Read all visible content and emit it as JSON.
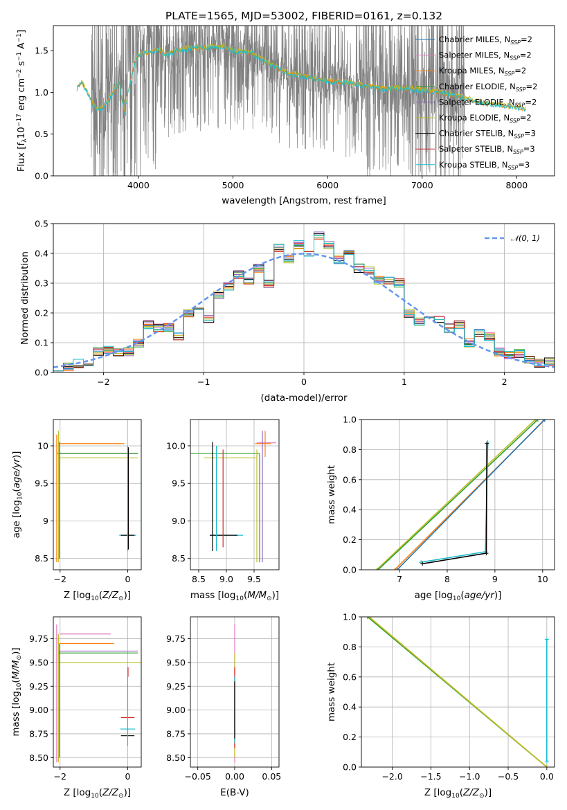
{
  "colors": {
    "chabrier_miles": "#1f77b4",
    "salpeter_miles": "#e377c2",
    "kroupa_miles": "#ff7f0e",
    "chabrier_elodie": "#2ca02c",
    "salpeter_elodie": "#9467bd",
    "kroupa_elodie": "#bcbd22",
    "chabrier_stelib": "#000000",
    "salpeter_stelib": "#d62728",
    "kroupa_stelib": "#17becf",
    "data": "#808080",
    "gauss": "#6495ed"
  },
  "chart_data": [
    {
      "id": "spectrum",
      "type": "line",
      "title": "PLATE=1565, MJD=53002, FIBERID=0161, z=0.132",
      "xlabel": "wavelength [Angstrom, rest frame]",
      "ylabel": "Flux [f_λ 10^-17 erg cm^-2 s^-1 A^-1]",
      "xlim": [
        3100,
        8400
      ],
      "ylim": [
        0,
        1.8
      ],
      "xticks": [
        4000,
        5000,
        6000,
        7000,
        8000
      ],
      "yticks": [
        0.0,
        0.5,
        1.0,
        1.5
      ],
      "data_range": [
        3500,
        7450
      ],
      "model_continuum": {
        "x": [
          3350,
          3400,
          3450,
          3500,
          3550,
          3600,
          3650,
          3700,
          3750,
          3800,
          3850,
          3900,
          3950,
          4000,
          4100,
          4200,
          4300,
          4400,
          4500,
          4700,
          4900,
          5000,
          5200,
          5400,
          5600,
          5800,
          6000,
          6200,
          6400,
          6600,
          6800,
          7000,
          7200,
          7400,
          7600,
          7800,
          8000,
          8100
        ],
        "y": [
          1.05,
          1.12,
          1.02,
          0.9,
          0.8,
          0.8,
          0.84,
          0.93,
          1.05,
          1.12,
          0.75,
          1.05,
          1.3,
          1.45,
          1.48,
          1.52,
          1.44,
          1.5,
          1.52,
          1.54,
          1.55,
          1.5,
          1.47,
          1.33,
          1.22,
          1.18,
          1.13,
          1.12,
          1.08,
          1.04,
          1.05,
          1.03,
          1.0,
          0.95,
          0.88,
          0.85,
          0.82,
          0.8
        ]
      },
      "legend": [
        {
          "label": "Chabrier MILES, N",
          "sub": "SSP",
          "n": "=2",
          "color_key": "chabrier_miles"
        },
        {
          "label": "Salpeter MILES, N",
          "sub": "SSP",
          "n": "=2",
          "color_key": "salpeter_miles"
        },
        {
          "label": "Kroupa MILES, N",
          "sub": "SSP",
          "n": "=2",
          "color_key": "kroupa_miles"
        },
        {
          "label": "Chabrier ELODIE, N",
          "sub": "SSP",
          "n": "=2",
          "color_key": "chabrier_elodie"
        },
        {
          "label": "Salpeter ELODIE, N",
          "sub": "SSP",
          "n": "=2",
          "color_key": "salpeter_elodie"
        },
        {
          "label": "Kroupa ELODIE, N",
          "sub": "SSP",
          "n": "=2",
          "color_key": "kroupa_elodie"
        },
        {
          "label": "Chabrier STELIB, N",
          "sub": "SSP",
          "n": "=3",
          "color_key": "chabrier_stelib"
        },
        {
          "label": "Salpeter STELIB, N",
          "sub": "SSP",
          "n": "=3",
          "color_key": "salpeter_stelib"
        },
        {
          "label": "Kroupa STELIB, N",
          "sub": "SSP",
          "n": "=3",
          "color_key": "kroupa_stelib"
        }
      ]
    },
    {
      "id": "residual_hist",
      "type": "bar",
      "xlabel": "(data-model)/error",
      "ylabel": "Normed distribution",
      "xlim": [
        -2.5,
        2.5
      ],
      "ylim": [
        0,
        0.5
      ],
      "xticks": [
        -2,
        -1,
        0,
        1,
        2
      ],
      "yticks": [
        0.0,
        0.1,
        0.2,
        0.3,
        0.4,
        0.5
      ],
      "bin_edges": [
        -2.5,
        -2.4,
        -2.3,
        -2.2,
        -2.1,
        -2.0,
        -1.9,
        -1.8,
        -1.7,
        -1.6,
        -1.5,
        -1.4,
        -1.3,
        -1.2,
        -1.1,
        -1.0,
        -0.9,
        -0.8,
        -0.7,
        -0.6,
        -0.5,
        -0.4,
        -0.3,
        -0.2,
        -0.1,
        0.0,
        0.1,
        0.2,
        0.3,
        0.4,
        0.5,
        0.6,
        0.7,
        0.8,
        0.9,
        1.0,
        1.1,
        1.2,
        1.3,
        1.4,
        1.5,
        1.6,
        1.7,
        1.8,
        1.9,
        2.0,
        2.1,
        2.2,
        2.3,
        2.4,
        2.5
      ],
      "heights": [
        0.02,
        0.02,
        0.03,
        0.035,
        0.07,
        0.075,
        0.065,
        0.07,
        0.1,
        0.16,
        0.15,
        0.15,
        0.12,
        0.2,
        0.22,
        0.18,
        0.26,
        0.29,
        0.33,
        0.31,
        0.35,
        0.3,
        0.42,
        0.38,
        0.43,
        0.4,
        0.46,
        0.43,
        0.38,
        0.4,
        0.35,
        0.34,
        0.31,
        0.31,
        0.3,
        0.2,
        0.17,
        0.19,
        0.18,
        0.15,
        0.16,
        0.1,
        0.13,
        0.12,
        0.07,
        0.06,
        0.065,
        0.045,
        0.03,
        0.035
      ],
      "legend": [
        {
          "label": "𝒩(0, 1)",
          "color_key": "gauss"
        }
      ]
    },
    {
      "id": "age_vs_Z",
      "type": "scatter",
      "xlabel": "Z [log10(Z/Z⊙)]",
      "ylabel": "age [log10(age/yr)]",
      "xlim": [
        -2.2,
        0.4
      ],
      "ylim": [
        8.35,
        10.35
      ],
      "xticks": [
        -2,
        0
      ],
      "yticks": [
        8.5,
        9.0,
        9.5,
        10.0
      ],
      "h_segments": [
        {
          "y": 10.03,
          "x": [
            -2.05,
            -0.1
          ],
          "c": "kroupa_miles"
        },
        {
          "y": 9.9,
          "x": [
            -2.08,
            0.3
          ],
          "c": "chabrier_stelib"
        },
        {
          "y": 9.9,
          "x": [
            -2.05,
            0.3
          ],
          "c": "chabrier_elodie"
        },
        {
          "y": 9.84,
          "x": [
            -2.05,
            0.3
          ],
          "c": "kroupa_elodie"
        },
        {
          "y": 8.81,
          "x": [
            -0.25,
            0.25
          ],
          "c": "kroupa_stelib"
        },
        {
          "y": 8.81,
          "x": [
            -0.2,
            0.2
          ],
          "c": "chabrier_stelib"
        }
      ],
      "v_segments": [
        {
          "x": -2.1,
          "y": [
            8.45,
            10.15
          ],
          "c": "kroupa_miles"
        },
        {
          "x": -2.05,
          "y": [
            8.45,
            10.2
          ],
          "c": "kroupa_elodie"
        },
        {
          "x": -2.02,
          "y": [
            8.5,
            10.05
          ],
          "c": "chabrier_elodie"
        },
        {
          "x": 0.0,
          "y": [
            8.6,
            10.0
          ],
          "c": "kroupa_stelib"
        },
        {
          "x": 0.02,
          "y": [
            8.62,
            9.98
          ],
          "c": "chabrier_stelib"
        }
      ]
    },
    {
      "id": "age_vs_mass",
      "type": "scatter",
      "xlabel": "mass [log10(M/M⊙)]",
      "ylabel": "",
      "xlim": [
        8.35,
        9.95
      ],
      "ylim": [
        8.35,
        10.35
      ],
      "xticks": [
        8.5,
        9.0,
        9.5
      ],
      "yticks": [
        8.5,
        9.0,
        9.5,
        10.0
      ],
      "h_segments": [
        {
          "y": 10.04,
          "x": [
            9.55,
            9.9
          ],
          "c": "salpeter_miles"
        },
        {
          "y": 10.03,
          "x": [
            9.52,
            9.8
          ],
          "c": "kroupa_miles"
        },
        {
          "y": 9.9,
          "x": [
            8.35,
            9.6
          ],
          "c": "chabrier_elodie"
        },
        {
          "y": 9.84,
          "x": [
            8.6,
            9.55
          ],
          "c": "kroupa_elodie"
        },
        {
          "y": 8.81,
          "x": [
            8.7,
            9.3
          ],
          "c": "kroupa_stelib"
        },
        {
          "y": 8.81,
          "x": [
            8.7,
            9.2
          ],
          "c": "chabrier_stelib"
        }
      ],
      "v_segments": [
        {
          "x": 8.75,
          "y": [
            8.6,
            10.05
          ],
          "c": "chabrier_stelib"
        },
        {
          "x": 8.82,
          "y": [
            8.6,
            10.0
          ],
          "c": "kroupa_stelib"
        },
        {
          "x": 8.94,
          "y": [
            8.65,
            9.95
          ],
          "c": "salpeter_stelib"
        },
        {
          "x": 9.55,
          "y": [
            8.45,
            9.95
          ],
          "c": "kroupa_elodie"
        },
        {
          "x": 9.6,
          "y": [
            8.45,
            9.9
          ],
          "c": "chabrier_elodie"
        },
        {
          "x": 9.65,
          "y": [
            8.45,
            10.2
          ],
          "c": "salpeter_elodie"
        },
        {
          "x": 9.7,
          "y": [
            9.85,
            10.2
          ],
          "c": "kroupa_miles"
        }
      ]
    },
    {
      "id": "weight_vs_age",
      "type": "line",
      "xlabel": "age [log10(age/yr)]",
      "ylabel": "mass weight",
      "xlim": [
        6.2,
        10.25
      ],
      "ylim": [
        0,
        1.0
      ],
      "xticks": [
        7,
        8,
        9,
        10
      ],
      "yticks": [
        0.0,
        0.2,
        0.4,
        0.6,
        0.8,
        1.0
      ],
      "series": [
        {
          "c": "kroupa_miles",
          "x": [
            6.9,
            10.05
          ],
          "y": [
            0.0,
            1.0
          ]
        },
        {
          "c": "chabrier_miles",
          "x": [
            6.95,
            10.04
          ],
          "y": [
            0.0,
            1.0
          ]
        },
        {
          "c": "kroupa_elodie",
          "x": [
            6.52,
            9.85
          ],
          "y": [
            0.0,
            1.0
          ]
        },
        {
          "c": "chabrier_elodie",
          "x": [
            6.55,
            9.9
          ],
          "y": [
            0.0,
            1.0
          ]
        },
        {
          "c": "kroupa_stelib",
          "x": [
            7.45,
            8.8,
            8.85
          ],
          "y": [
            0.05,
            0.12,
            0.85
          ]
        },
        {
          "c": "chabrier_stelib",
          "x": [
            7.48,
            8.82,
            8.83
          ],
          "y": [
            0.04,
            0.11,
            0.84
          ]
        }
      ]
    },
    {
      "id": "mass_vs_Z",
      "type": "scatter",
      "xlabel": "Z [log10(Z/Z⊙)]",
      "ylabel": "mass [log10(M/M⊙)]",
      "xlim": [
        -2.2,
        0.4
      ],
      "ylim": [
        8.4,
        9.98
      ],
      "xticks": [
        -2,
        0
      ],
      "yticks": [
        8.5,
        8.75,
        9.0,
        9.25,
        9.5,
        9.75
      ],
      "h_segments": [
        {
          "y": 9.8,
          "x": [
            -2.0,
            -0.5
          ],
          "c": "salpeter_miles"
        },
        {
          "y": 9.7,
          "x": [
            -2.0,
            -0.4
          ],
          "c": "kroupa_miles"
        },
        {
          "y": 9.62,
          "x": [
            -2.05,
            0.3
          ],
          "c": "salpeter_elodie"
        },
        {
          "y": 9.6,
          "x": [
            -2.05,
            0.3
          ],
          "c": "chabrier_elodie"
        },
        {
          "y": 9.5,
          "x": [
            -2.05,
            0.4
          ],
          "c": "kroupa_elodie"
        },
        {
          "y": 8.92,
          "x": [
            -0.2,
            0.2
          ],
          "c": "salpeter_stelib"
        },
        {
          "y": 8.8,
          "x": [
            -0.22,
            0.22
          ],
          "c": "kroupa_stelib"
        },
        {
          "y": 8.73,
          "x": [
            -0.2,
            0.2
          ],
          "c": "chabrier_stelib"
        }
      ],
      "v_segments": [
        {
          "x": -2.1,
          "y": [
            8.45,
            9.9
          ],
          "c": "salpeter_miles"
        },
        {
          "x": -2.05,
          "y": [
            8.45,
            9.8
          ],
          "c": "kroupa_elodie"
        },
        {
          "x": -2.02,
          "y": [
            8.5,
            9.7
          ],
          "c": "chabrier_elodie"
        },
        {
          "x": 0.0,
          "y": [
            8.62,
            9.35
          ],
          "c": "kroupa_stelib"
        },
        {
          "x": 0.01,
          "y": [
            9.35,
            9.45
          ],
          "c": "salpeter_stelib"
        }
      ]
    },
    {
      "id": "mass_vs_ebv",
      "type": "scatter",
      "xlabel": "E(B-V)",
      "ylabel": "",
      "xlim": [
        -0.06,
        0.06
      ],
      "ylim": [
        8.4,
        9.98
      ],
      "xticks": [
        -0.05,
        0.0,
        0.05
      ],
      "yticks": [
        8.5,
        8.75,
        9.0,
        9.25,
        9.5,
        9.75
      ],
      "v_segments": [
        {
          "x": 0.0,
          "y": [
            8.45,
            9.9
          ],
          "c": "salpeter_miles"
        },
        {
          "x": 0.0,
          "y": [
            8.5,
            9.6
          ],
          "c": "kroupa_elodie"
        },
        {
          "x": 0.0,
          "y": [
            8.6,
            9.45
          ],
          "c": "salpeter_stelib"
        },
        {
          "x": 0.0,
          "y": [
            8.65,
            9.35
          ],
          "c": "kroupa_stelib"
        },
        {
          "x": 0.0,
          "y": [
            8.7,
            9.3
          ],
          "c": "chabrier_stelib"
        }
      ],
      "h_segments": []
    },
    {
      "id": "weight_vs_Z",
      "type": "line",
      "xlabel": "Z [log10(Z/Z⊙)]",
      "ylabel": "mass weight",
      "xlim": [
        -2.4,
        0.1
      ],
      "ylim": [
        0,
        1.0
      ],
      "xticks": [
        -2.0,
        -1.5,
        -1.0,
        -0.5,
        0.0
      ],
      "yticks": [
        0.0,
        0.2,
        0.4,
        0.6,
        0.8,
        1.0
      ],
      "series": [
        {
          "c": "kroupa_miles",
          "x": [
            -2.3,
            0.0
          ],
          "y": [
            1.0,
            0.0
          ]
        },
        {
          "c": "chabrier_elodie",
          "x": [
            -2.32,
            0.0
          ],
          "y": [
            1.0,
            0.0
          ]
        },
        {
          "c": "kroupa_elodie",
          "x": [
            -2.3,
            0.0
          ],
          "y": [
            1.0,
            0.0
          ]
        },
        {
          "c": "kroupa_stelib",
          "x": [
            0.0,
            0.0
          ],
          "y": [
            0.04,
            0.85
          ]
        }
      ]
    }
  ]
}
